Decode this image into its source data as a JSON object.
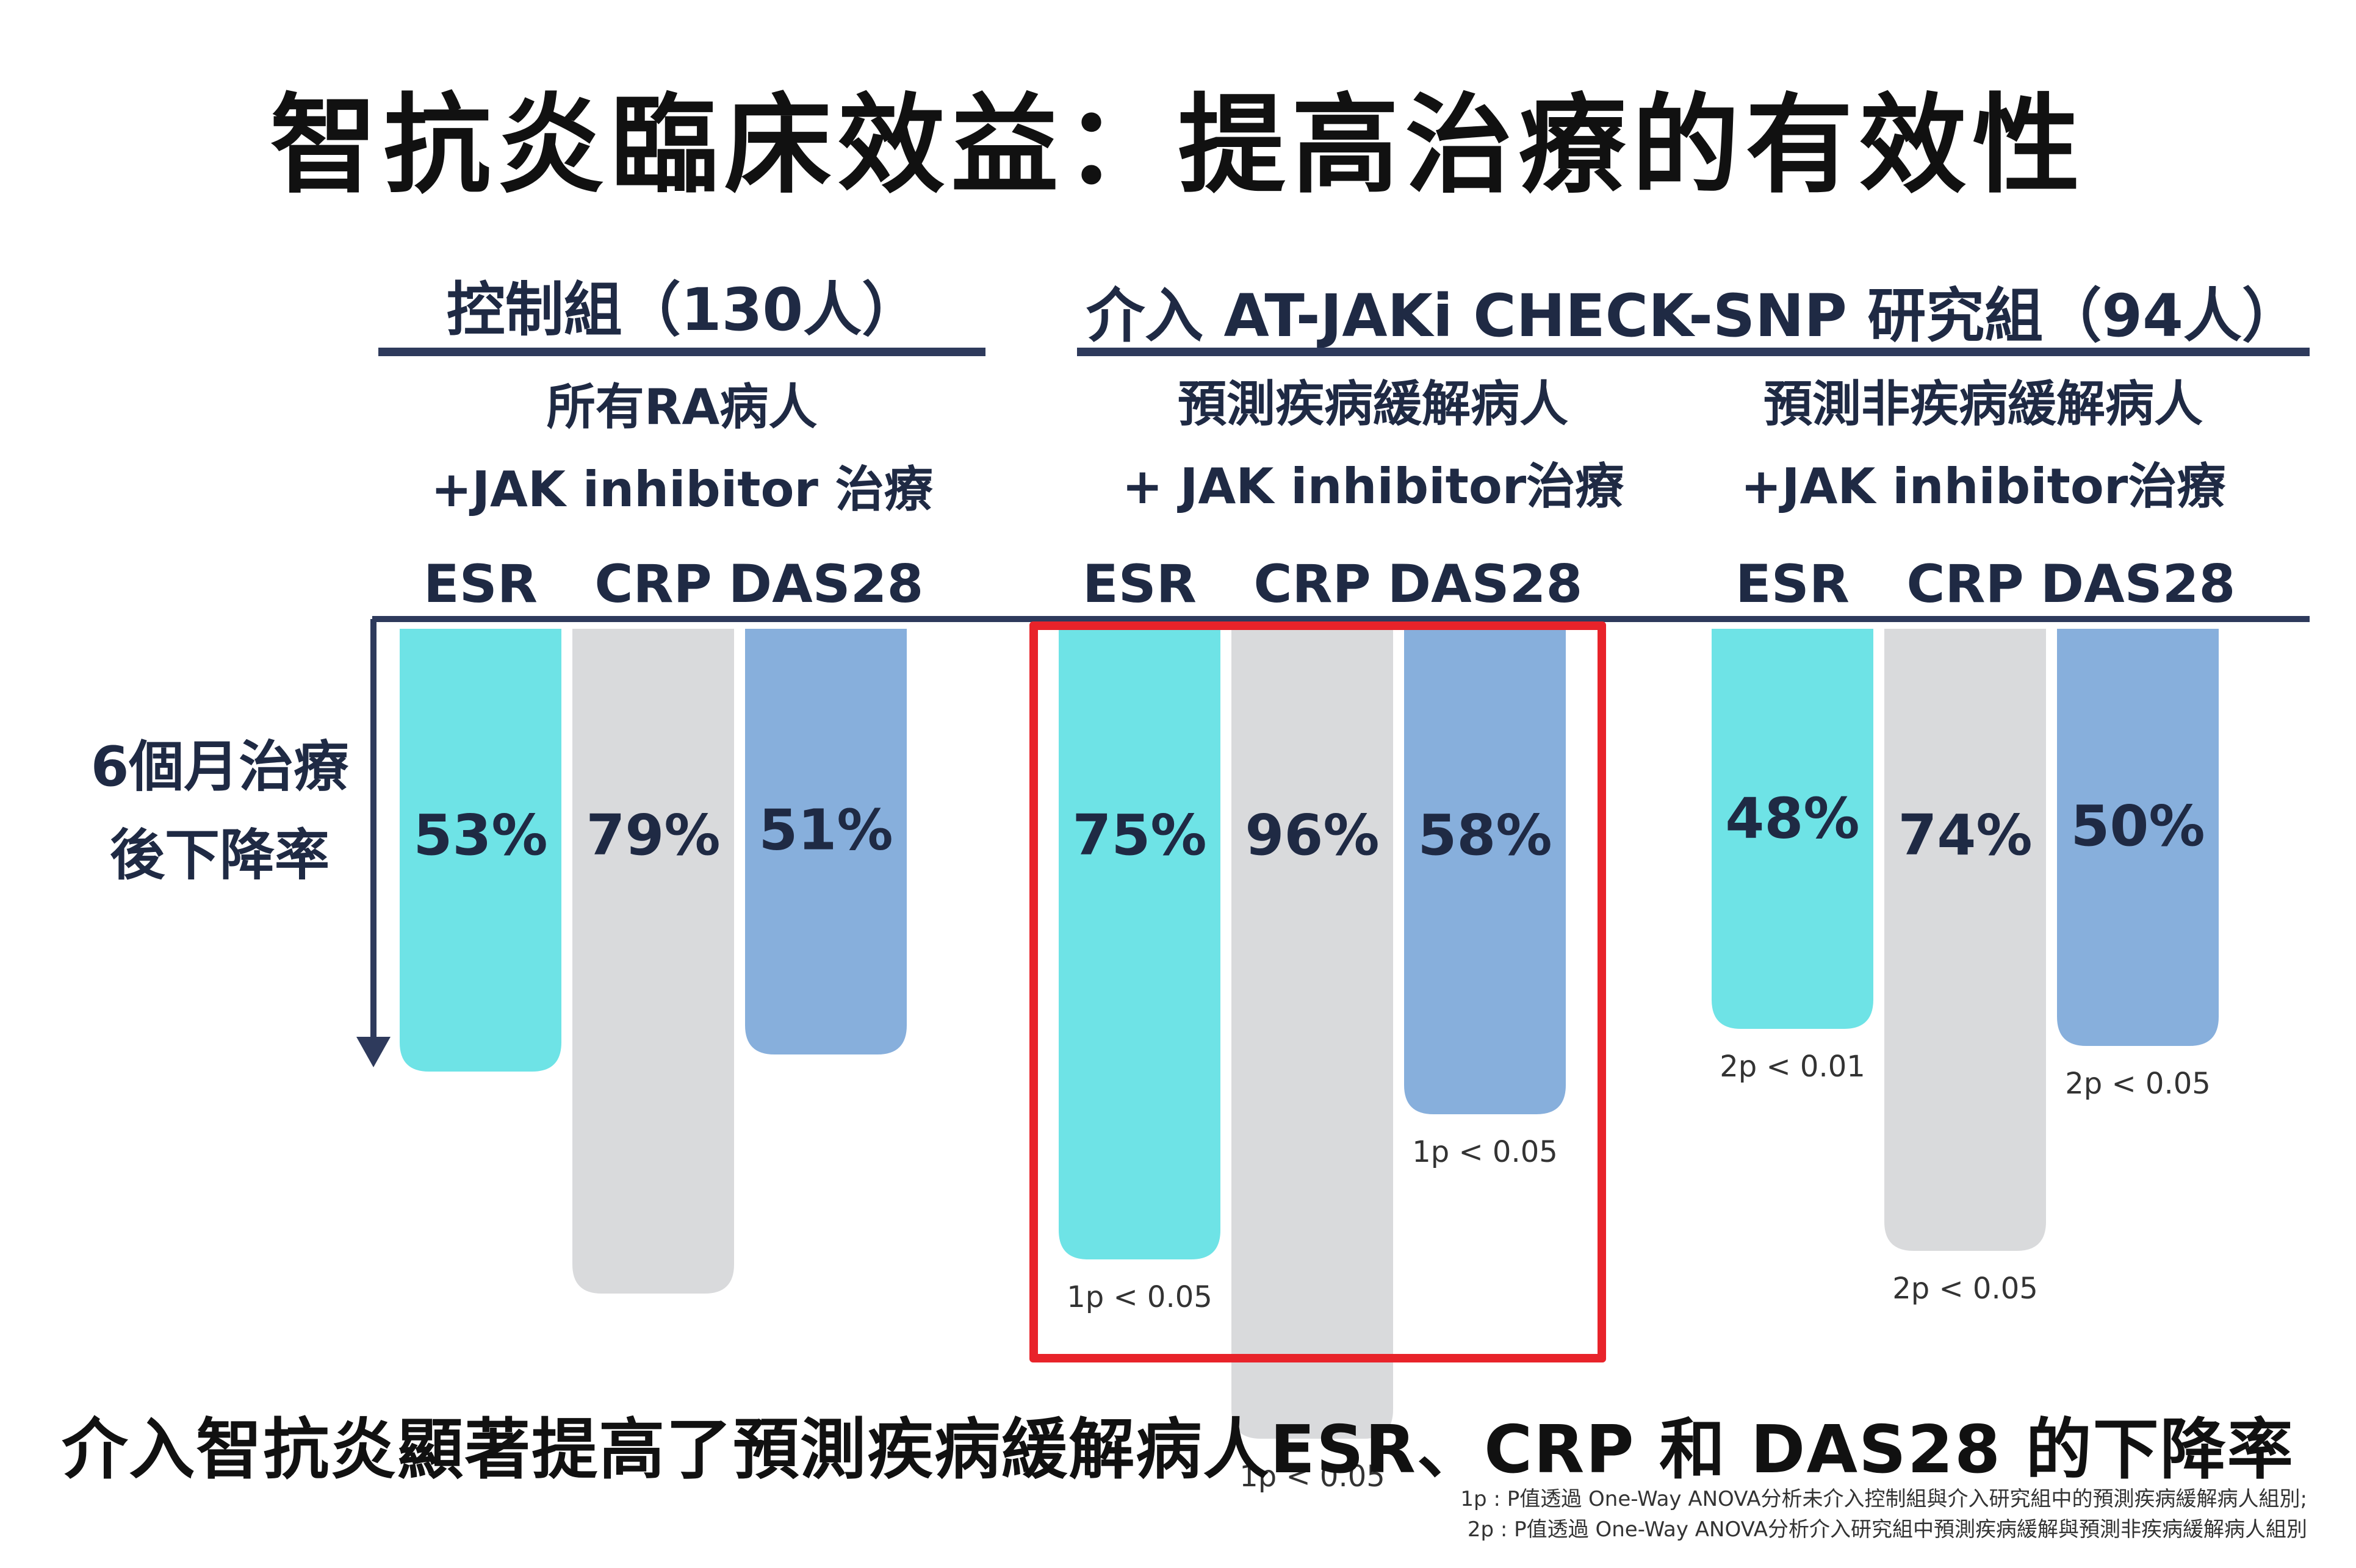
{
  "title": "智抗炎臨床效益：提高治療的有效性",
  "groups": {
    "control": {
      "header": "控制組（130人）",
      "sub_line1": "所有RA病人",
      "sub_line2": "+JAK inhibitor 治療"
    },
    "intervention": {
      "header": "介入 AT-JAKi CHECK-SNP 研究組（94人）",
      "predicted_remission": {
        "sub_line1": "預測疾病緩解病人",
        "sub_line2": "+ JAK inhibitor治療"
      },
      "predicted_non_remission": {
        "sub_line1": "預測非疾病緩解病人",
        "sub_line2": "+JAK inhibitor治療"
      }
    }
  },
  "y_axis_label_line1": "6個月治療",
  "y_axis_label_line2": "後下降率",
  "colors": {
    "ESR": "#6ee3e6",
    "CRP": "#d9dadc",
    "DAS28": "#87afdc",
    "axis": "#2e3a5c",
    "highlight": "#e8232a"
  },
  "chart_data": {
    "type": "bar",
    "orientation": "downward",
    "metrics": [
      "ESR",
      "CRP",
      "DAS28"
    ],
    "groups": [
      {
        "key": "control",
        "bars": [
          {
            "metric": "ESR",
            "value": 53,
            "label": "53%",
            "sig": ""
          },
          {
            "metric": "CRP",
            "value": 79,
            "label": "79%",
            "sig": ""
          },
          {
            "metric": "DAS28",
            "value": 51,
            "label": "51%",
            "sig": ""
          }
        ]
      },
      {
        "key": "predicted_remission",
        "highlighted": true,
        "bars": [
          {
            "metric": "ESR",
            "value": 75,
            "label": "75%",
            "sig": "1p < 0.05"
          },
          {
            "metric": "CRP",
            "value": 96,
            "label": "96%",
            "sig": "1p < 0.05"
          },
          {
            "metric": "DAS28",
            "value": 58,
            "label": "58%",
            "sig": "1p < 0.05"
          }
        ]
      },
      {
        "key": "predicted_non_remission",
        "bars": [
          {
            "metric": "ESR",
            "value": 48,
            "label": "48%",
            "sig": "2p < 0.01"
          },
          {
            "metric": "CRP",
            "value": 74,
            "label": "74%",
            "sig": "2p < 0.05"
          },
          {
            "metric": "DAS28",
            "value": 50,
            "label": "50%",
            "sig": "2p < 0.05"
          }
        ]
      }
    ]
  },
  "footer": "介入智抗炎顯著提高了預測疾病緩解病人ESR、CRP 和 DAS28 的下降率",
  "notes": {
    "note1": "1p : P值透過 One-Way ANOVA分析未介入控制組與介入研究組中的預測疾病緩解病人組別;",
    "note2": "2p : P值透過 One-Way ANOVA分析介入研究組中預測疾病緩解與預測非疾病緩解病人組別"
  }
}
